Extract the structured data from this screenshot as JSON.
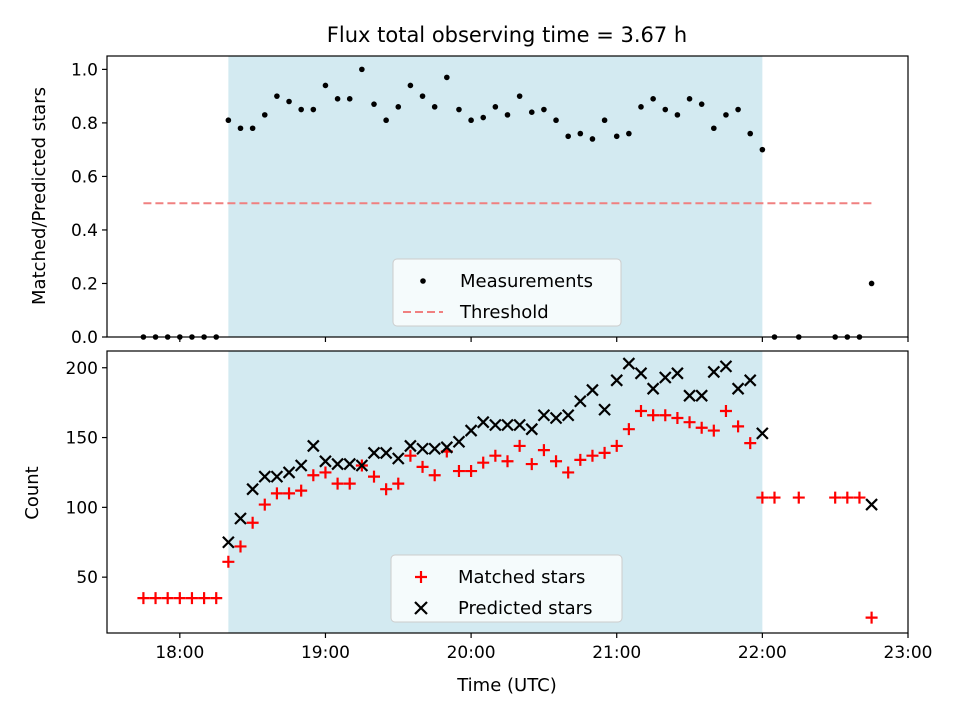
{
  "chart_data": [
    {
      "type": "scatter",
      "title": "Flux total observing time = 3.67 h",
      "xlabel": "",
      "ylabel": "Matched/Predicted stars",
      "xlim": [
        "17:30",
        "23:00"
      ],
      "ylim": [
        0,
        1.05
      ],
      "yticks": [
        "0.0",
        "0.2",
        "0.4",
        "0.6",
        "0.8",
        "1.0"
      ],
      "shaded_region": {
        "x_start": "18:20",
        "x_end": "22:00",
        "color": "#d3eaf1"
      },
      "legend": {
        "position": "lower center",
        "entries": [
          "Measurements",
          "Threshold"
        ]
      },
      "series": [
        {
          "name": "Measurements",
          "color": "#000000",
          "marker": "dot",
          "points": [
            [
              "17:45",
              0.0
            ],
            [
              "17:50",
              0.0
            ],
            [
              "17:55",
              0.0
            ],
            [
              "18:00",
              0.0
            ],
            [
              "18:05",
              0.0
            ],
            [
              "18:10",
              0.0
            ],
            [
              "18:15",
              0.0
            ],
            [
              "18:20",
              0.81
            ],
            [
              "18:25",
              0.78
            ],
            [
              "18:30",
              0.78
            ],
            [
              "18:35",
              0.83
            ],
            [
              "18:40",
              0.9
            ],
            [
              "18:45",
              0.88
            ],
            [
              "18:50",
              0.85
            ],
            [
              "18:55",
              0.85
            ],
            [
              "19:00",
              0.94
            ],
            [
              "19:05",
              0.89
            ],
            [
              "19:10",
              0.89
            ],
            [
              "19:15",
              1.0
            ],
            [
              "19:20",
              0.87
            ],
            [
              "19:25",
              0.81
            ],
            [
              "19:30",
              0.86
            ],
            [
              "19:35",
              0.94
            ],
            [
              "19:40",
              0.9
            ],
            [
              "19:45",
              0.86
            ],
            [
              "19:50",
              0.97
            ],
            [
              "19:55",
              0.85
            ],
            [
              "20:00",
              0.81
            ],
            [
              "20:05",
              0.82
            ],
            [
              "20:10",
              0.86
            ],
            [
              "20:15",
              0.83
            ],
            [
              "20:20",
              0.9
            ],
            [
              "20:25",
              0.84
            ],
            [
              "20:30",
              0.85
            ],
            [
              "20:35",
              0.81
            ],
            [
              "20:40",
              0.75
            ],
            [
              "20:45",
              0.76
            ],
            [
              "20:50",
              0.74
            ],
            [
              "20:55",
              0.81
            ],
            [
              "21:00",
              0.75
            ],
            [
              "21:05",
              0.76
            ],
            [
              "21:10",
              0.86
            ],
            [
              "21:15",
              0.89
            ],
            [
              "21:20",
              0.85
            ],
            [
              "21:25",
              0.83
            ],
            [
              "21:30",
              0.89
            ],
            [
              "21:35",
              0.87
            ],
            [
              "21:40",
              0.78
            ],
            [
              "21:45",
              0.83
            ],
            [
              "21:50",
              0.85
            ],
            [
              "21:55",
              0.76
            ],
            [
              "22:00",
              0.7
            ],
            [
              "22:05",
              0.0
            ],
            [
              "22:15",
              0.0
            ],
            [
              "22:30",
              0.0
            ],
            [
              "22:35",
              0.0
            ],
            [
              "22:40",
              0.0
            ],
            [
              "22:45",
              0.2
            ]
          ]
        },
        {
          "name": "Threshold",
          "color": "#f08080",
          "style": "dashed",
          "points": [
            [
              "17:45",
              0.5
            ],
            [
              "22:45",
              0.5
            ]
          ]
        }
      ]
    },
    {
      "type": "scatter",
      "title": "",
      "xlabel": "Time (UTC)",
      "ylabel": "Count",
      "xlim": [
        "17:30",
        "23:00"
      ],
      "ylim": [
        10,
        212
      ],
      "yticks": [
        "50",
        "100",
        "150",
        "200"
      ],
      "xticks": [
        "18:00",
        "19:00",
        "20:00",
        "21:00",
        "22:00",
        "23:00"
      ],
      "shaded_region": {
        "x_start": "18:20",
        "x_end": "22:00",
        "color": "#d3eaf1"
      },
      "legend": {
        "position": "lower center",
        "entries": [
          "Matched stars",
          "Predicted stars"
        ]
      },
      "series": [
        {
          "name": "Matched stars",
          "color": "#ff0000",
          "marker": "plus",
          "points": [
            [
              "17:45",
              35
            ],
            [
              "17:50",
              35
            ],
            [
              "17:55",
              35
            ],
            [
              "18:00",
              35
            ],
            [
              "18:05",
              35
            ],
            [
              "18:10",
              35
            ],
            [
              "18:15",
              35
            ],
            [
              "18:20",
              61
            ],
            [
              "18:25",
              72
            ],
            [
              "18:30",
              89
            ],
            [
              "18:35",
              102
            ],
            [
              "18:40",
              110
            ],
            [
              "18:45",
              110
            ],
            [
              "18:50",
              112
            ],
            [
              "18:55",
              123
            ],
            [
              "19:00",
              125
            ],
            [
              "19:05",
              117
            ],
            [
              "19:10",
              117
            ],
            [
              "19:15",
              130
            ],
            [
              "19:20",
              122
            ],
            [
              "19:25",
              113
            ],
            [
              "19:30",
              117
            ],
            [
              "19:35",
              137
            ],
            [
              "19:40",
              129
            ],
            [
              "19:45",
              123
            ],
            [
              "19:50",
              140
            ],
            [
              "19:55",
              126
            ],
            [
              "20:00",
              126
            ],
            [
              "20:05",
              132
            ],
            [
              "20:10",
              137
            ],
            [
              "20:15",
              133
            ],
            [
              "20:20",
              144
            ],
            [
              "20:25",
              131
            ],
            [
              "20:30",
              141
            ],
            [
              "20:35",
              133
            ],
            [
              "20:40",
              125
            ],
            [
              "20:45",
              134
            ],
            [
              "20:50",
              137
            ],
            [
              "20:55",
              139
            ],
            [
              "21:00",
              144
            ],
            [
              "21:05",
              156
            ],
            [
              "21:10",
              169
            ],
            [
              "21:15",
              166
            ],
            [
              "21:20",
              166
            ],
            [
              "21:25",
              164
            ],
            [
              "21:30",
              161
            ],
            [
              "21:35",
              157
            ],
            [
              "21:40",
              155
            ],
            [
              "21:45",
              169
            ],
            [
              "21:50",
              158
            ],
            [
              "21:55",
              146
            ],
            [
              "22:00",
              107
            ],
            [
              "22:05",
              107
            ],
            [
              "22:15",
              107
            ],
            [
              "22:30",
              107
            ],
            [
              "22:35",
              107
            ],
            [
              "22:40",
              107
            ],
            [
              "22:45",
              21
            ]
          ]
        },
        {
          "name": "Predicted stars",
          "color": "#000000",
          "marker": "x",
          "points": [
            [
              "18:20",
              75
            ],
            [
              "18:25",
              92
            ],
            [
              "18:30",
              113
            ],
            [
              "18:35",
              122
            ],
            [
              "18:40",
              122
            ],
            [
              "18:45",
              125
            ],
            [
              "18:50",
              130
            ],
            [
              "18:55",
              144
            ],
            [
              "19:00",
              133
            ],
            [
              "19:05",
              131
            ],
            [
              "19:10",
              131
            ],
            [
              "19:15",
              130
            ],
            [
              "19:20",
              139
            ],
            [
              "19:25",
              139
            ],
            [
              "19:30",
              135
            ],
            [
              "19:35",
              144
            ],
            [
              "19:40",
              142
            ],
            [
              "19:45",
              142
            ],
            [
              "19:50",
              143
            ],
            [
              "19:55",
              147
            ],
            [
              "20:00",
              155
            ],
            [
              "20:05",
              161
            ],
            [
              "20:10",
              159
            ],
            [
              "20:15",
              159
            ],
            [
              "20:20",
              159
            ],
            [
              "20:25",
              156
            ],
            [
              "20:30",
              166
            ],
            [
              "20:35",
              164
            ],
            [
              "20:40",
              166
            ],
            [
              "20:45",
              176
            ],
            [
              "20:50",
              184
            ],
            [
              "20:55",
              170
            ],
            [
              "21:00",
              191
            ],
            [
              "21:05",
              203
            ],
            [
              "21:10",
              196
            ],
            [
              "21:15",
              185
            ],
            [
              "21:20",
              193
            ],
            [
              "21:25",
              196
            ],
            [
              "21:30",
              180
            ],
            [
              "21:35",
              180
            ],
            [
              "21:40",
              197
            ],
            [
              "21:45",
              201
            ],
            [
              "21:50",
              185
            ],
            [
              "21:55",
              191
            ],
            [
              "22:00",
              153
            ],
            [
              "22:45",
              102
            ]
          ]
        }
      ]
    }
  ]
}
